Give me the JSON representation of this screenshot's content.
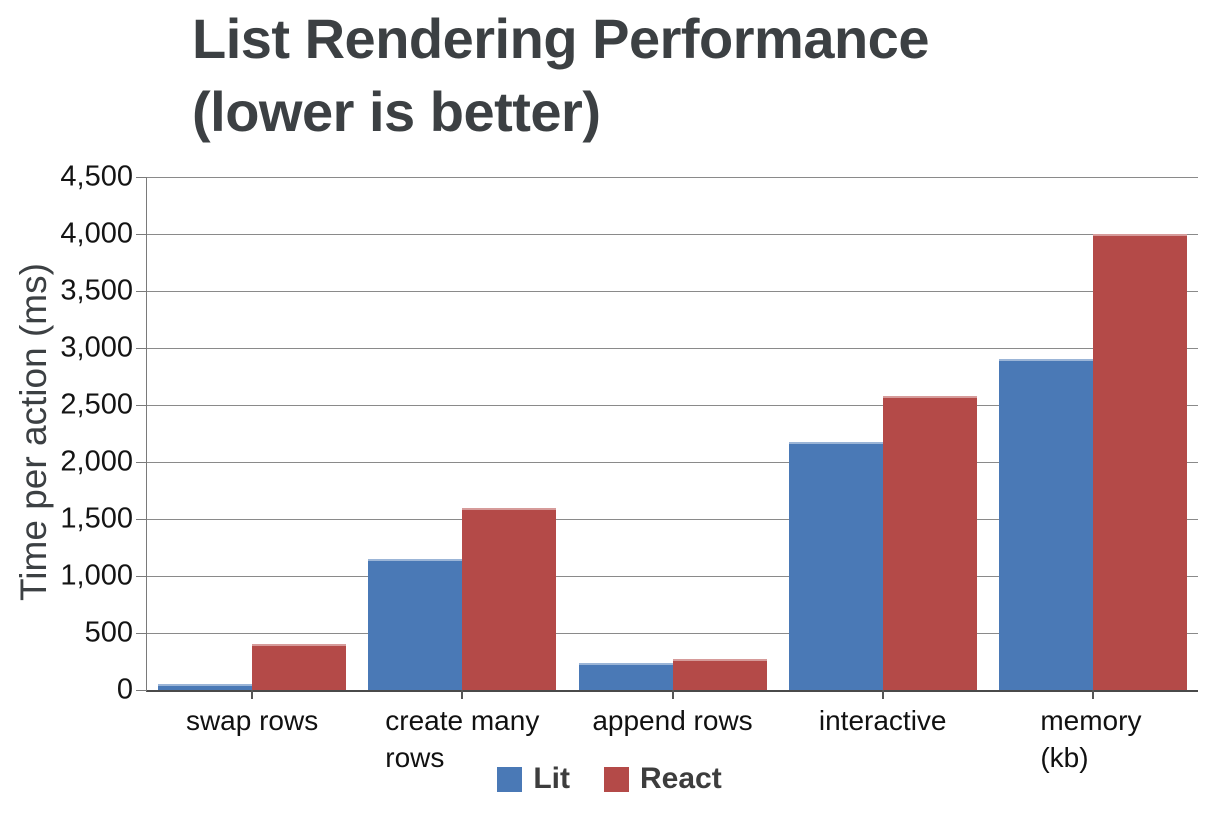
{
  "title": {
    "line1": "List Rendering Performance",
    "line2": "(lower is better)"
  },
  "chart_data": {
    "type": "bar",
    "title": "List Rendering Performance (lower is better)",
    "ylabel": "Time per action (ms)",
    "xlabel": "",
    "categories": [
      "swap rows",
      "create many rows",
      "append rows",
      "interactive",
      "memory (kb)"
    ],
    "category_display_lines": [
      [
        "swap rows"
      ],
      [
        "create many",
        "rows"
      ],
      [
        "append rows"
      ],
      [
        "interactive"
      ],
      [
        "memory (kb)"
      ]
    ],
    "series": [
      {
        "name": "Lit",
        "color": "#4a79b6",
        "values": [
          50,
          1150,
          240,
          2175,
          2900
        ]
      },
      {
        "name": "React",
        "color": "#b44a48",
        "values": [
          400,
          1600,
          275,
          2575,
          4000
        ]
      }
    ],
    "ylim": [
      0,
      4500
    ],
    "ytick_step": 500,
    "ytick_labels": [
      "0",
      "500",
      "1,000",
      "1,500",
      "2,000",
      "2,500",
      "3,000",
      "3,500",
      "4,000",
      "4,500"
    ],
    "grid": true,
    "legend_position": "bottom"
  },
  "colors": {
    "lit_blue": "#4a79b6",
    "react_red": "#b44a48",
    "title_text": "#3c4043",
    "tick_text": "#141414",
    "gridline": "#8a8a8a",
    "axis_line": "#4a4a4a",
    "background": "#ffffff"
  }
}
